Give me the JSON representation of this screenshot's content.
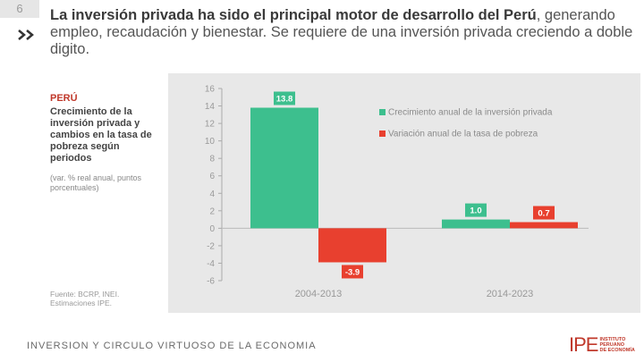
{
  "page_number": "6",
  "headline": {
    "bold": "La inversión privada ha sido el principal motor de desarrollo del Perú",
    "rest": ", generando empleo, recaudación y bienestar. Se requiere de una inversión privada creciendo a doble digito."
  },
  "side": {
    "country": "PERÚ",
    "subtitle": "Crecimiento de la inversión privada y cambios en la tasa de pobreza según periodos",
    "units": "(var. % real anual, puntos porcentuales)"
  },
  "source": "Fuente: BCRP, INEI. Estimaciones IPE.",
  "footer": "INVERSION Y CIRCULO VIRTUOSO DE LA ECONOMIA",
  "logo": {
    "mark": "IPE",
    "line1": "INSTITUTO",
    "line2": "PERUANO",
    "line3": "DE ECONOMÍA"
  },
  "colors": {
    "green": "#3dbf8e",
    "red": "#e8402f",
    "accent": "#c0392b"
  },
  "chart_data": {
    "type": "bar",
    "categories": [
      "2004-2013",
      "2014-2023"
    ],
    "series": [
      {
        "name": "Crecimiento anual de la inversión privada",
        "values": [
          13.8,
          1.0
        ],
        "labels": [
          "13.8",
          "1.0"
        ]
      },
      {
        "name": "Variación anual de la tasa de pobreza",
        "values": [
          -3.9,
          0.7
        ],
        "labels": [
          "-3.9",
          "0.7"
        ]
      }
    ],
    "ylim": [
      -6,
      16
    ],
    "yticks": [
      16,
      14,
      12,
      10,
      8,
      6,
      4,
      2,
      0,
      -2,
      -4,
      -6
    ],
    "ytick_labels": [
      "16",
      "14",
      "12",
      "10",
      "8",
      "6",
      "4",
      "2",
      "0",
      "-2",
      "-4",
      "-6"
    ],
    "legend": "top-right"
  }
}
